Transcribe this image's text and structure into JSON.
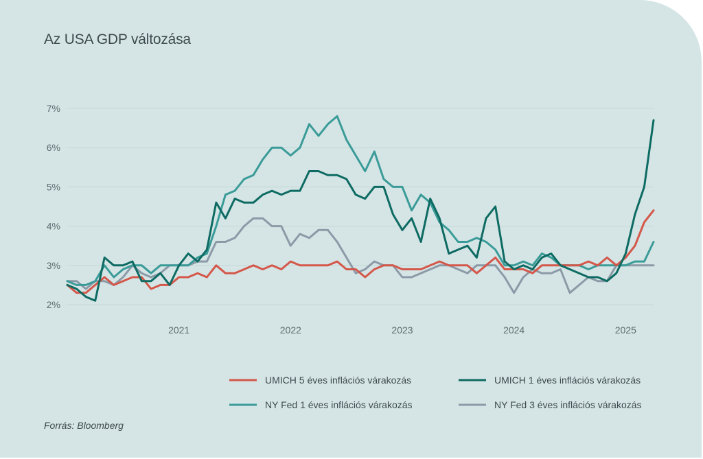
{
  "title": "Az USA GDP változása",
  "source": "Forrás: Bloomberg",
  "chart_data": {
    "type": "line",
    "x_start": 2020.0,
    "x_ticks": [
      "2021",
      "2022",
      "2023",
      "2024",
      "2025"
    ],
    "x_tick_values": [
      2021,
      2022,
      2023,
      2024,
      2025
    ],
    "y_ticks": [
      "2%",
      "3%",
      "4%",
      "5%",
      "6%",
      "7%"
    ],
    "y_tick_values": [
      2,
      3,
      4,
      5,
      6,
      7
    ],
    "ylim": [
      1.9,
      7.3
    ],
    "grid": "horizontal",
    "legend_position": "bottom",
    "series": [
      {
        "name": "UMICH 5 éves inflációs várakozás",
        "color": "#d4574a",
        "values": [
          2.5,
          2.3,
          2.3,
          2.5,
          2.7,
          2.5,
          2.6,
          2.7,
          2.7,
          2.4,
          2.5,
          2.5,
          2.7,
          2.7,
          2.8,
          2.7,
          3.0,
          2.8,
          2.8,
          2.9,
          3.0,
          2.9,
          3.0,
          2.9,
          3.1,
          3.0,
          3.0,
          3.0,
          3.0,
          3.1,
          2.9,
          2.9,
          2.7,
          2.9,
          3.0,
          3.0,
          2.9,
          2.9,
          2.9,
          3.0,
          3.1,
          3.0,
          3.0,
          3.0,
          2.8,
          3.0,
          3.2,
          2.9,
          2.9,
          2.9,
          2.8,
          3.0,
          3.0,
          3.0,
          3.0,
          3.0,
          3.1,
          3.0,
          3.2,
          3.0,
          3.2,
          3.5,
          4.1,
          4.4
        ]
      },
      {
        "name": "UMICH 1 éves inflációs várakozás",
        "color": "#0e6b63",
        "values": [
          2.5,
          2.4,
          2.2,
          2.1,
          3.2,
          3.0,
          3.0,
          3.1,
          2.6,
          2.6,
          2.8,
          2.5,
          3.0,
          3.3,
          3.1,
          3.4,
          4.6,
          4.2,
          4.7,
          4.6,
          4.6,
          4.8,
          4.9,
          4.8,
          4.9,
          4.9,
          5.4,
          5.4,
          5.3,
          5.3,
          5.2,
          4.8,
          4.7,
          5.0,
          5.0,
          4.3,
          3.9,
          4.2,
          3.6,
          4.7,
          4.2,
          3.3,
          3.4,
          3.5,
          3.2,
          4.2,
          4.5,
          3.1,
          2.9,
          3.0,
          2.9,
          3.2,
          3.3,
          3.0,
          2.9,
          2.8,
          2.7,
          2.7,
          2.6,
          2.8,
          3.3,
          4.3,
          5.0,
          6.7
        ]
      },
      {
        "name": "NY Fed 1 éves inflációs várakozás",
        "color": "#3a9b98",
        "values": [
          2.6,
          2.5,
          2.5,
          2.6,
          3.0,
          2.7,
          2.9,
          3.0,
          3.0,
          2.8,
          3.0,
          3.0,
          3.0,
          3.0,
          3.2,
          3.3,
          4.0,
          4.8,
          4.9,
          5.2,
          5.3,
          5.7,
          6.0,
          6.0,
          5.8,
          6.0,
          6.6,
          6.3,
          6.6,
          6.8,
          6.2,
          5.8,
          5.4,
          5.9,
          5.2,
          5.0,
          5.0,
          4.4,
          4.8,
          4.6,
          4.1,
          3.9,
          3.6,
          3.6,
          3.7,
          3.6,
          3.4,
          3.0,
          3.0,
          3.1,
          3.0,
          3.3,
          3.2,
          3.0,
          3.0,
          3.0,
          2.9,
          3.0,
          3.0,
          3.0,
          3.0,
          3.1,
          3.1,
          3.6
        ]
      },
      {
        "name": "NY Fed 3 éves inflációs várakozás",
        "color": "#8c9aa8",
        "values": [
          2.6,
          2.6,
          2.4,
          2.6,
          2.6,
          2.5,
          2.7,
          3.0,
          2.8,
          2.7,
          2.8,
          3.0,
          3.0,
          3.0,
          3.1,
          3.1,
          3.6,
          3.6,
          3.7,
          4.0,
          4.2,
          4.2,
          4.0,
          4.0,
          3.5,
          3.8,
          3.7,
          3.9,
          3.9,
          3.6,
          3.2,
          2.8,
          2.9,
          3.1,
          3.0,
          3.0,
          2.7,
          2.7,
          2.8,
          2.9,
          3.0,
          3.0,
          2.9,
          2.8,
          3.0,
          3.0,
          3.0,
          2.7,
          2.3,
          2.7,
          2.9,
          2.8,
          2.8,
          2.9,
          2.3,
          2.5,
          2.7,
          2.6,
          2.6,
          3.0,
          3.0,
          3.0,
          3.0,
          3.0
        ]
      }
    ]
  }
}
